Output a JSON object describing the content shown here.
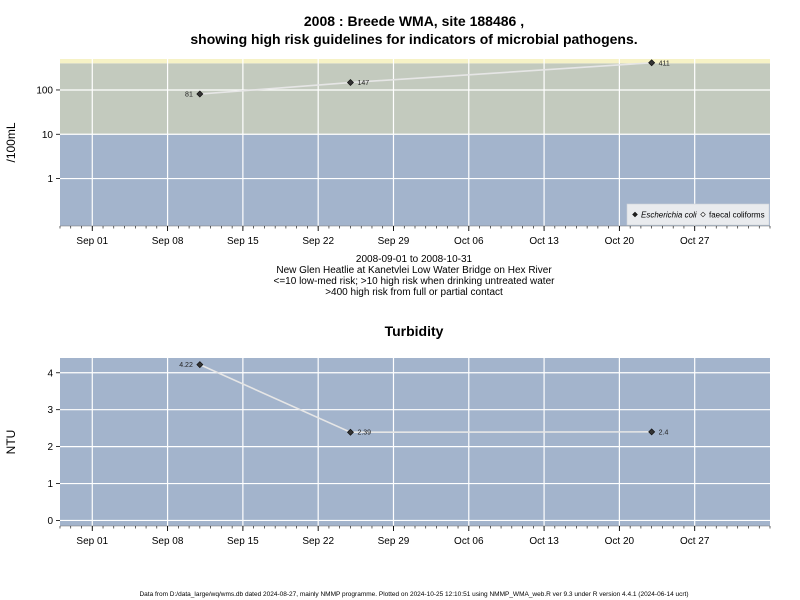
{
  "chart_data": [
    {
      "type": "scatter",
      "title_line1": "2008 : Breede WMA, site 188486 ,",
      "title_line2": "showing high risk guidelines for indicators of microbial pathogens.",
      "ylabel": "/100mL",
      "yscale": "log",
      "yticks": [
        1,
        10,
        100
      ],
      "ytick_labels": [
        "1",
        "10",
        "100"
      ],
      "x_tick_labels": [
        "Sep 01",
        "Sep 08",
        "Sep 15",
        "Sep 22",
        "Sep 29",
        "Oct 06",
        "Oct 13",
        "Oct 20",
        "Oct 27"
      ],
      "x_tick_dates": [
        "2008-09-01",
        "2008-09-08",
        "2008-09-15",
        "2008-09-22",
        "2008-09-29",
        "2008-10-06",
        "2008-10-13",
        "2008-10-20",
        "2008-10-27"
      ],
      "xlim": [
        "2008-08-29",
        "2008-11-03"
      ],
      "bands": [
        {
          "from": 0.085,
          "to": 10,
          "color": "#a3b4cc"
        },
        {
          "from": 10,
          "to": 400,
          "color": "#c3cabe"
        },
        {
          "from": 400,
          "to": 500,
          "color": "#f6f2c6"
        }
      ],
      "grid": true,
      "series": [
        {
          "name": "Escherichia coli",
          "marker": "diamond-filled",
          "x": [
            "2008-09-11",
            "2008-09-25",
            "2008-10-23"
          ],
          "y": [
            81,
            147,
            411
          ],
          "labels": [
            "81",
            "147",
            "411"
          ]
        }
      ],
      "legend": {
        "placement": "bottom-right",
        "items": [
          {
            "label": "Escherichia coli",
            "marker": "diamond-filled",
            "italic": true
          },
          {
            "label": "faecal coliforms",
            "marker": "diamond-open",
            "italic": false
          }
        ]
      },
      "caption": [
        "2008-09-01 to 2008-10-31",
        "New Glen Heatlie at Kanetvlei Low Water Bridge on Hex River",
        "<=10 low-med risk; >10 high risk when drinking untreated water",
        ">400 high risk from full or partial contact"
      ]
    },
    {
      "type": "scatter",
      "title": "Turbidity",
      "ylabel": "NTU",
      "ylim": [
        -0.15,
        4.4
      ],
      "yticks": [
        0,
        1,
        2,
        3,
        4
      ],
      "ytick_labels": [
        "0",
        "1",
        "2",
        "3",
        "4"
      ],
      "x_tick_labels": [
        "Sep 01",
        "Sep 08",
        "Sep 15",
        "Sep 22",
        "Sep 29",
        "Oct 06",
        "Oct 13",
        "Oct 20",
        "Oct 27"
      ],
      "x_tick_dates": [
        "2008-09-01",
        "2008-09-08",
        "2008-09-15",
        "2008-09-22",
        "2008-09-29",
        "2008-10-06",
        "2008-10-13",
        "2008-10-20",
        "2008-10-27"
      ],
      "xlim": [
        "2008-08-29",
        "2008-11-03"
      ],
      "background": "#a3b4cc",
      "grid": true,
      "series": [
        {
          "marker": "diamond-filled",
          "x": [
            "2008-09-11",
            "2008-09-25",
            "2008-10-23"
          ],
          "y": [
            4.22,
            2.39,
            2.4
          ],
          "labels": [
            "4.22",
            "2.39",
            "2.4"
          ]
        }
      ]
    }
  ],
  "footer": "Data from D:/data_large/wq/wms.db dated 2024-08-27, mainly NMMP programme. Plotted on 2024-10-25 12:10:51 using NMMP_WMA_web.R ver 9.3 under R version 4.4.1 (2024-06-14 ucrt)"
}
